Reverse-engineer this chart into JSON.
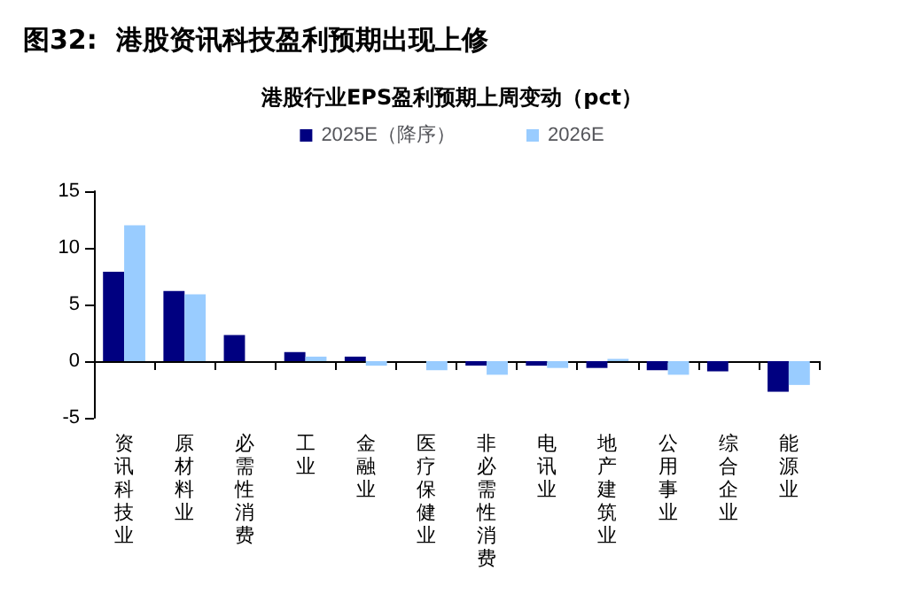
{
  "chart_data": {
    "type": "bar",
    "title": "图32:  港股资讯科技盈利预期出现上修",
    "subtitle": "港股行业EPS盈利预期上周变动（pct）",
    "categories": [
      "资讯科技业",
      "原材料业",
      "必需性消费",
      "工业",
      "金融业",
      "医疗保健业",
      "非必需性消费",
      "电讯业",
      "地产建筑业",
      "公用事业",
      "综合企业",
      "能源业"
    ],
    "series": [
      {
        "name": "2025E（降序）",
        "color": "#000080",
        "values": [
          7.9,
          6.2,
          2.3,
          0.8,
          0.4,
          0,
          -0.4,
          -0.4,
          -0.6,
          -0.8,
          -0.9,
          -2.7
        ]
      },
      {
        "name": "2026E",
        "color": "#99ccff",
        "values": [
          12.0,
          5.9,
          0,
          0.4,
          -0.4,
          -0.8,
          -1.2,
          -0.6,
          0.2,
          -1.2,
          0,
          -2.1
        ]
      }
    ],
    "ylim": [
      -5,
      15
    ],
    "yticks": [
      -5,
      0,
      5,
      10,
      15
    ],
    "legend": "top"
  }
}
